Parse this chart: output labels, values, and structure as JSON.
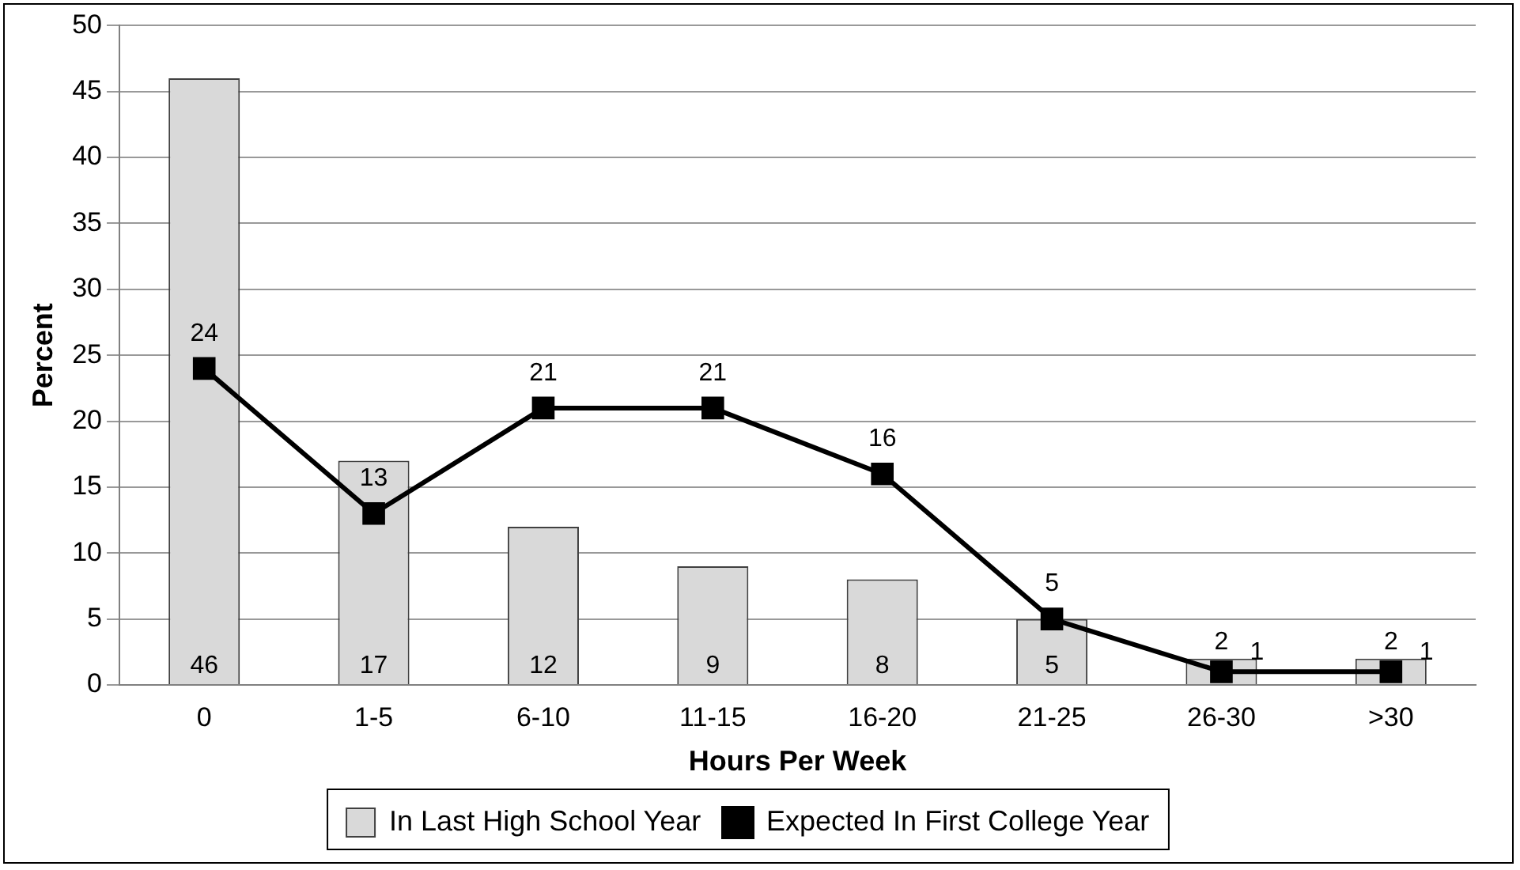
{
  "chart_data": {
    "type": "bar",
    "xlabel": "Hours Per Week",
    "ylabel": "Percent",
    "categories": [
      "0",
      "1-5",
      "6-10",
      "11-15",
      "16-20",
      "21-25",
      "26-30",
      ">30"
    ],
    "series": [
      {
        "name": "In Last High School Year",
        "color": "#d9d9d9",
        "values": [
          46,
          17,
          12,
          9,
          8,
          5,
          2,
          2
        ]
      },
      {
        "name": "Expected In First College Year",
        "type": "line",
        "color": "#000000",
        "values": [
          24,
          13,
          21,
          21,
          16,
          5,
          1,
          1
        ]
      }
    ],
    "ylim": [
      0,
      50
    ],
    "yticks": [
      0,
      5,
      10,
      15,
      20,
      25,
      30,
      35,
      40,
      45,
      50
    ],
    "grid": "y",
    "legend": "bottom",
    "marker": "square",
    "line_style": "solid",
    "data_labels": true
  }
}
